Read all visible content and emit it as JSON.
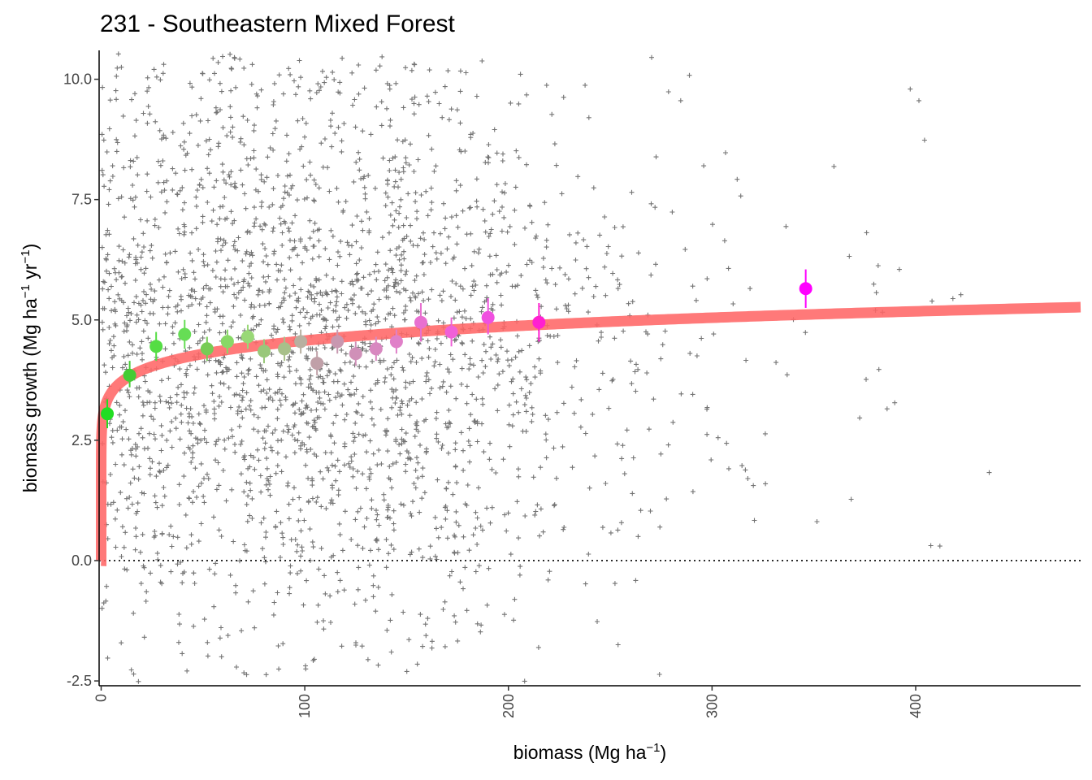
{
  "chart_data": {
    "type": "scatter",
    "title": "231 - Southeastern Mixed Forest",
    "xlabel": {
      "base": "biomass (Mg ha",
      "sup": "−1",
      "end": ")"
    },
    "ylabel": {
      "part1": "biomass growth (Mg ha",
      "sup1": "−1",
      "mid": " yr",
      "sup2": "−1",
      "end": ")"
    },
    "xlim": [
      -1,
      481
    ],
    "ylim": [
      -2.6,
      10.6
    ],
    "x_ticks": [
      {
        "value": 0,
        "label": "0"
      },
      {
        "value": 100,
        "label": "100"
      },
      {
        "value": 200,
        "label": "200"
      },
      {
        "value": 300,
        "label": "300"
      },
      {
        "value": 400,
        "label": "400"
      }
    ],
    "y_ticks": [
      {
        "value": -2.5,
        "label": "-2.5"
      },
      {
        "value": 0,
        "label": "0.0"
      },
      {
        "value": 2.5,
        "label": "2.5"
      },
      {
        "value": 5,
        "label": "5.0"
      },
      {
        "value": 7.5,
        "label": "7.5"
      },
      {
        "value": 10,
        "label": "10.0"
      }
    ],
    "reference_line": {
      "y": 0,
      "style": "dotted"
    },
    "raw_observations": {
      "marker": "plus",
      "approx_count": 9000,
      "description_of_distribution": "dense cloud between biomass 0-250, sparse to 460; growth mostly 0-10.5, some down to -2.6"
    },
    "binned_means": [
      {
        "x": 3,
        "y": 3.05,
        "lo": 2.75,
        "hi": 3.35,
        "color": "#22dd22"
      },
      {
        "x": 14,
        "y": 3.85,
        "lo": 3.6,
        "hi": 4.15,
        "color": "#44cc33"
      },
      {
        "x": 27,
        "y": 4.45,
        "lo": 4.15,
        "hi": 4.75,
        "color": "#55dd44"
      },
      {
        "x": 41,
        "y": 4.7,
        "lo": 4.4,
        "hi": 5.0,
        "color": "#66dd55"
      },
      {
        "x": 52,
        "y": 4.4,
        "lo": 4.15,
        "hi": 4.65,
        "color": "#77cc55"
      },
      {
        "x": 62,
        "y": 4.55,
        "lo": 4.3,
        "hi": 4.8,
        "color": "#88d866"
      },
      {
        "x": 72,
        "y": 4.65,
        "lo": 4.4,
        "hi": 4.9,
        "color": "#99d877"
      },
      {
        "x": 80,
        "y": 4.35,
        "lo": 4.1,
        "hi": 4.6,
        "color": "#99c87a"
      },
      {
        "x": 90,
        "y": 4.4,
        "lo": 4.15,
        "hi": 4.65,
        "color": "#a8c08a"
      },
      {
        "x": 98,
        "y": 4.55,
        "lo": 4.3,
        "hi": 4.8,
        "color": "#b8b0a0"
      },
      {
        "x": 106,
        "y": 4.1,
        "lo": 3.85,
        "hi": 4.35,
        "color": "#c0a0a8"
      },
      {
        "x": 116,
        "y": 4.55,
        "lo": 4.3,
        "hi": 4.8,
        "color": "#c898b0"
      },
      {
        "x": 125,
        "y": 4.3,
        "lo": 4.05,
        "hi": 4.55,
        "color": "#d090b8"
      },
      {
        "x": 135,
        "y": 4.4,
        "lo": 4.15,
        "hi": 4.65,
        "color": "#d888c0"
      },
      {
        "x": 145,
        "y": 4.55,
        "lo": 4.3,
        "hi": 4.8,
        "color": "#e080c8"
      },
      {
        "x": 157,
        "y": 4.95,
        "lo": 4.55,
        "hi": 5.35,
        "color": "#e870d0"
      },
      {
        "x": 172,
        "y": 4.75,
        "lo": 4.45,
        "hi": 5.05,
        "color": "#f060d8"
      },
      {
        "x": 190,
        "y": 5.05,
        "lo": 4.7,
        "hi": 5.45,
        "color": "#f050e0"
      },
      {
        "x": 215,
        "y": 4.95,
        "lo": 4.55,
        "hi": 5.35,
        "color": "#ff20d0"
      },
      {
        "x": 346,
        "y": 5.65,
        "lo": 5.25,
        "hi": 6.05,
        "color": "#ff00ff"
      }
    ],
    "fitted_curve": {
      "form": "y = 3.02 * x^0.09",
      "a": 3.02,
      "b": 0.09,
      "x_range": [
        0,
        481
      ],
      "color": "#ff6666"
    }
  },
  "colors": {
    "scatter_marker": "#000000",
    "fit_line": "#ff6666",
    "bin_low_biomass": "#22dd22",
    "bin_high_biomass": "#ff00ff"
  }
}
